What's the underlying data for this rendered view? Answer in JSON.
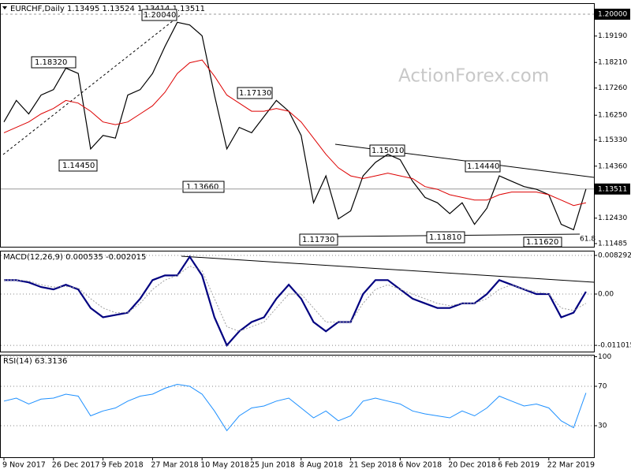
{
  "chart_data": [
    {
      "type": "line",
      "title": "EURCHF,Daily 1.13495 1.13524 1.13414 1.13511",
      "watermark": "ActionForex.com",
      "categories": [
        "9 Nov 2017",
        null,
        null,
        null,
        "26 Dec 2017",
        null,
        null,
        null,
        "9 Feb 2018",
        null,
        null,
        null,
        "27 Mar 2018",
        null,
        null,
        null,
        "10 May 2018",
        null,
        null,
        null,
        "25 Jun 2018",
        null,
        null,
        null,
        "8 Aug 2018",
        null,
        null,
        null,
        "21 Sep 2018",
        null,
        null,
        null,
        "6 Nov 2018",
        null,
        null,
        null,
        "20 Dec 2018",
        null,
        null,
        null,
        "6 Feb 2019",
        null,
        null,
        null,
        "22 Mar 2019",
        null,
        null,
        null
      ],
      "series": [
        {
          "color": "#000000",
          "values": [
            1.16,
            1.168,
            1.163,
            1.17,
            1.172,
            1.18,
            1.178,
            1.15,
            1.155,
            1.154,
            1.17,
            1.172,
            1.178,
            1.188,
            1.197,
            1.196,
            1.192,
            1.17,
            1.15,
            1.158,
            1.156,
            1.162,
            1.168,
            1.164,
            1.155,
            1.13,
            1.14,
            1.124,
            1.127,
            1.14,
            1.145,
            1.148,
            1.146,
            1.138,
            1.132,
            1.13,
            1.126,
            1.13,
            1.122,
            1.128,
            1.14,
            1.138,
            1.136,
            1.135,
            1.133,
            1.122,
            1.12,
            1.13511
          ]
        },
        {
          "color": "#dd0000",
          "values": [
            1.156,
            1.158,
            1.16,
            1.163,
            1.165,
            1.168,
            1.167,
            1.164,
            1.16,
            1.159,
            1.16,
            1.163,
            1.166,
            1.171,
            1.178,
            1.182,
            1.183,
            1.177,
            1.17,
            1.167,
            1.164,
            1.164,
            1.165,
            1.164,
            1.16,
            1.154,
            1.148,
            1.143,
            1.14,
            1.139,
            1.14,
            1.141,
            1.14,
            1.139,
            1.136,
            1.135,
            1.133,
            1.132,
            1.131,
            1.131,
            1.133,
            1.134,
            1.134,
            1.134,
            1.133,
            1.131,
            1.129,
            1.13
          ]
        }
      ],
      "ylim": [
        1.11368,
        1.20411
      ],
      "yticks": [
        {
          "value": 1.1919,
          "label": "1.19190"
        },
        {
          "value": 1.1821,
          "label": "1.18210"
        },
        {
          "value": 1.1726,
          "label": "1.17260"
        },
        {
          "value": 1.1625,
          "label": "1.16250"
        },
        {
          "value": 1.1533,
          "label": "1.15330"
        },
        {
          "value": 1.1436,
          "label": "1.14360"
        },
        {
          "value": 1.1243,
          "label": "1.12430"
        },
        {
          "value": 1.11485,
          "label": "1.11485"
        }
      ],
      "levels": [
        {
          "value": 1.2,
          "label": "1.20000"
        },
        {
          "value": 1.13511,
          "label": "1.13511"
        }
      ],
      "annotations": [
        "1.20040",
        "1.18320",
        "1.14450",
        "1.13660",
        "1.17130",
        "1.11730",
        "1.15010",
        "1.14440",
        "1.11810",
        "1.11620",
        "61.8"
      ],
      "grid": false
    },
    {
      "type": "line",
      "title": "MACD(12,26,9) 0.000535 -0.002015",
      "series": [
        {
          "color": "#000080",
          "values": [
            0.003,
            0.003,
            0.0025,
            0.0015,
            0.001,
            0.002,
            0.001,
            -0.003,
            -0.005,
            -0.0045,
            -0.004,
            -0.001,
            0.003,
            0.004,
            0.004,
            0.008,
            0.004,
            -0.005,
            -0.011,
            -0.008,
            -0.006,
            -0.005,
            -0.001,
            0.002,
            -0.001,
            -0.006,
            -0.008,
            -0.006,
            -0.006,
            0.0,
            0.003,
            0.003,
            0.001,
            -0.001,
            -0.002,
            -0.003,
            -0.003,
            -0.002,
            -0.002,
            0.0,
            0.003,
            0.002,
            0.001,
            0.0,
            0.0,
            -0.005,
            -0.004,
            0.0005
          ]
        },
        {
          "color": "#a0a0a0",
          "values": [
            0.003,
            0.003,
            0.0028,
            0.002,
            0.0015,
            0.0016,
            0.0013,
            -0.001,
            -0.003,
            -0.004,
            -0.004,
            -0.002,
            0.001,
            0.003,
            0.004,
            0.006,
            0.005,
            -0.001,
            -0.007,
            -0.008,
            -0.007,
            -0.006,
            -0.003,
            0.0,
            0.0,
            -0.003,
            -0.006,
            -0.006,
            -0.006,
            -0.002,
            0.001,
            0.002,
            0.001,
            0.0,
            -0.001,
            -0.002,
            -0.0025,
            -0.002,
            -0.002,
            -0.001,
            0.001,
            0.002,
            0.001,
            0.0005,
            0.0,
            -0.003,
            -0.0035,
            -0.002
          ]
        }
      ],
      "ylim": [
        -0.012354,
        0.009307
      ],
      "yticks": [
        0.008292,
        {
          "value": 0,
          "label": "0.00"
        },
        -0.011015
      ],
      "grid": true
    },
    {
      "type": "line",
      "title": "RSI(14) 63.3136",
      "series": [
        {
          "color": "#1e90ff",
          "values": [
            55,
            58,
            52,
            57,
            58,
            62,
            60,
            40,
            45,
            48,
            55,
            60,
            62,
            68,
            72,
            70,
            62,
            45,
            25,
            40,
            48,
            50,
            55,
            58,
            48,
            38,
            45,
            35,
            40,
            55,
            58,
            55,
            52,
            45,
            42,
            40,
            38,
            45,
            40,
            48,
            60,
            55,
            50,
            52,
            48,
            35,
            28,
            63.3136
          ]
        }
      ],
      "ylim": [
        -2,
        102
      ],
      "yticks": [
        100,
        70,
        30
      ],
      "grid": true
    }
  ]
}
